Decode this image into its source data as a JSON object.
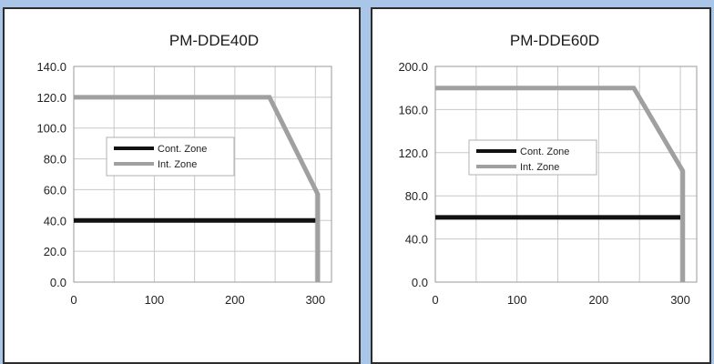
{
  "colors": {
    "background": "#a9c6e8",
    "panel": "#ffffff",
    "grid": "#c8c8c8",
    "cont_zone": "#111111",
    "int_zone": "#a0a0a0"
  },
  "chart_data": [
    {
      "type": "line",
      "title": "PM-DDE40D",
      "xlabel": "",
      "ylabel": "",
      "xlim": [
        0,
        320
      ],
      "ylim": [
        0,
        140
      ],
      "x_ticks": [
        "0",
        "100",
        "200",
        "300"
      ],
      "x_tick_values": [
        0,
        100,
        200,
        300
      ],
      "y_ticks": [
        "0.0",
        "20.0",
        "40.0",
        "60.0",
        "80.0",
        "100.0",
        "120.0",
        "140.0"
      ],
      "y_tick_values": [
        0,
        20,
        40,
        60,
        80,
        100,
        120,
        140
      ],
      "grid": true,
      "legend_position": "middle-left",
      "series": [
        {
          "name": "Cont. Zone",
          "x": [
            0,
            300
          ],
          "y": [
            40,
            40
          ]
        },
        {
          "name": "Int. Zone",
          "x": [
            0,
            243,
            303,
            303
          ],
          "y": [
            120,
            120,
            57,
            0
          ]
        }
      ]
    },
    {
      "type": "line",
      "title": "PM-DDE60D",
      "xlabel": "",
      "ylabel": "",
      "xlim": [
        0,
        320
      ],
      "ylim": [
        0,
        200
      ],
      "x_ticks": [
        "0",
        "100",
        "200",
        "300"
      ],
      "x_tick_values": [
        0,
        100,
        200,
        300
      ],
      "y_ticks": [
        "0.0",
        "40.0",
        "80.0",
        "120.0",
        "160.0",
        "200.0"
      ],
      "y_tick_values": [
        0,
        40,
        80,
        120,
        160,
        200
      ],
      "grid": true,
      "legend_position": "middle-left",
      "series": [
        {
          "name": "Cont. Zone",
          "x": [
            0,
            300
          ],
          "y": [
            60,
            60
          ]
        },
        {
          "name": "Int. Zone",
          "x": [
            0,
            243,
            303,
            303
          ],
          "y": [
            180,
            180,
            103,
            0
          ]
        }
      ]
    }
  ]
}
